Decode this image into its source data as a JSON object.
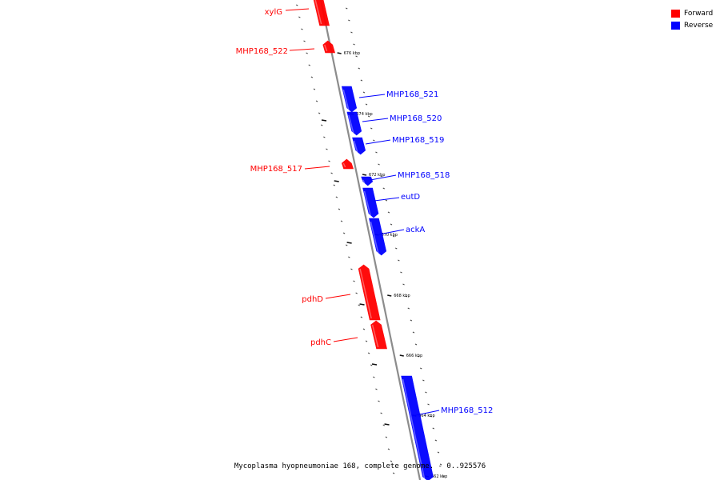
{
  "colors": {
    "forward": "#ff0000",
    "reverse": "#0000ff",
    "backbone": "#8c8c8c"
  },
  "legend": {
    "forward_label": "Forward",
    "reverse_label": "Reverse"
  },
  "caption": "Mycoplasma hyopneumoniae 168, complete genome. - 0..925576",
  "ticks": [
    "676 kbp",
    "674 kbp",
    "672 kbp",
    "670 kbp",
    "668 kbp",
    "666 kbp",
    "664 kbp",
    "662 kbp"
  ],
  "genes": [
    {
      "name": "xylG",
      "strand": "forward"
    },
    {
      "name": "MHP168_522",
      "strand": "forward"
    },
    {
      "name": "MHP168_521",
      "strand": "reverse"
    },
    {
      "name": "MHP168_520",
      "strand": "reverse"
    },
    {
      "name": "MHP168_519",
      "strand": "reverse"
    },
    {
      "name": "MHP168_517",
      "strand": "forward"
    },
    {
      "name": "MHP168_518",
      "strand": "reverse"
    },
    {
      "name": "eutD",
      "strand": "reverse"
    },
    {
      "name": "ackA",
      "strand": "reverse"
    },
    {
      "name": "pdhD",
      "strand": "forward"
    },
    {
      "name": "pdhC",
      "strand": "forward"
    },
    {
      "name": "MHP168_512",
      "strand": "reverse"
    }
  ]
}
